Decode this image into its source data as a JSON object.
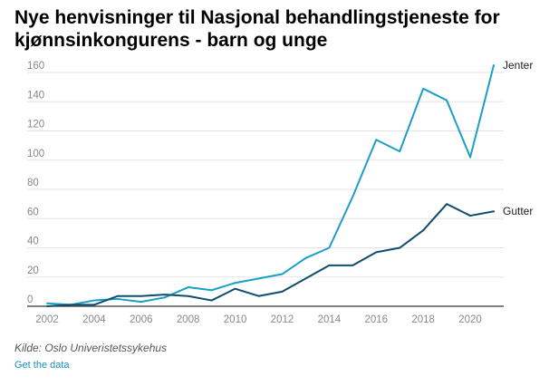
{
  "title": "Nye henvisninger til Nasjonal behandlingstjeneste for kjønnsinkongurens - barn og unge",
  "source": "Kilde: Oslo Univeristetssykehus",
  "get_data_label": "Get the data",
  "colors": {
    "jenter": "#1b9fc6",
    "gutter": "#0f4d6b",
    "grid": "#e3e3e3",
    "axis": "#333333"
  },
  "chart_data": {
    "type": "line",
    "title": "Nye henvisninger til Nasjonal behandlingstjeneste for kjønnsinkongurens - barn og unge",
    "xlabel": "",
    "ylabel": "",
    "x": [
      2002,
      2003,
      2004,
      2005,
      2006,
      2007,
      2008,
      2009,
      2010,
      2011,
      2012,
      2013,
      2014,
      2015,
      2016,
      2017,
      2018,
      2019,
      2020,
      2021
    ],
    "x_ticks": [
      "2002",
      "2004",
      "2006",
      "2008",
      "2010",
      "2012",
      "2014",
      "2016",
      "2018",
      "2020"
    ],
    "y_ticks": [
      "0",
      "20",
      "40",
      "60",
      "80",
      "100",
      "120",
      "140",
      "160"
    ],
    "xlim": [
      2002,
      2021
    ],
    "ylim": [
      0,
      165
    ],
    "grid": true,
    "legend": "end-of-line labels",
    "series": [
      {
        "name": "Jenter",
        "values": [
          2,
          1,
          4,
          5,
          3,
          6,
          13,
          11,
          16,
          19,
          22,
          33,
          40,
          75,
          114,
          106,
          149,
          141,
          102,
          165
        ]
      },
      {
        "name": "Gutter",
        "values": [
          0,
          1,
          1,
          7,
          7,
          8,
          7,
          4,
          12,
          7,
          10,
          19,
          28,
          28,
          37,
          40,
          52,
          70,
          62,
          65
        ]
      }
    ]
  }
}
